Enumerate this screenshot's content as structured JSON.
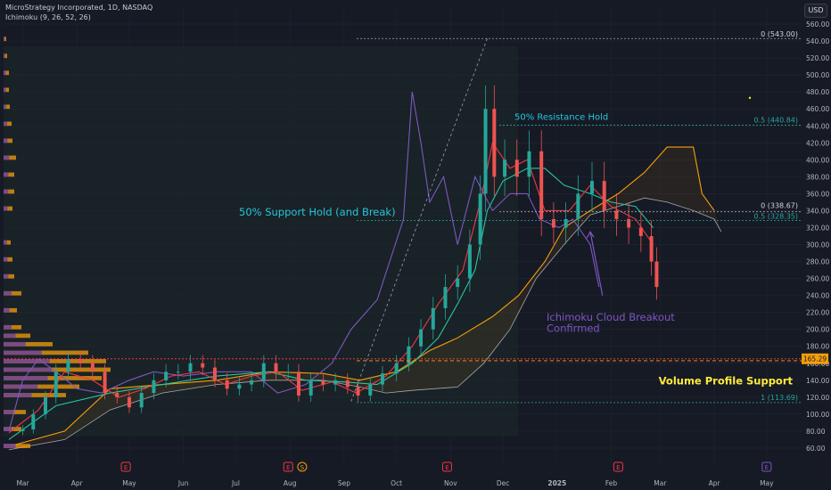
{
  "header": {
    "symbol_line": "MicroStrategy Incorporated, 1D, NASDAQ",
    "indicator_line": "Ichimoku (9, 26, 52, 26)",
    "currency": "USD"
  },
  "colors": {
    "background": "#161a25",
    "candle_up": "#26a69a",
    "candle_down": "#ef5350",
    "tenkan": "#f23645",
    "kijun": "#26c6a0",
    "lagging": "#7e57c2",
    "span_a": "#f59e0b",
    "span_b": "#c9c9cc",
    "volume_profile": "#f59e0b",
    "volume_profile_dim": "#6b3fa0",
    "fib_line": "#26a69a",
    "support_line": "#f59e0b",
    "support_line2": "#f23645",
    "annotation_teal": "#26c6da",
    "annotation_purple": "#7e57c2",
    "annotation_yellow": "#ffeb3b"
  },
  "chart_data": {
    "type": "candlestick",
    "title": "MicroStrategy Incorporated, 1D, NASDAQ",
    "ylim": [
      40,
      580
    ],
    "y_ticks": [
      60,
      80,
      100,
      120,
      140,
      160,
      180,
      200,
      220,
      240,
      260,
      280,
      300,
      320,
      340,
      360,
      380,
      400,
      420,
      440,
      460,
      480,
      500,
      520,
      540,
      560
    ],
    "x_labels": [
      {
        "label": "Mar",
        "date": "2024-03-01"
      },
      {
        "label": "Apr",
        "date": "2024-04-01"
      },
      {
        "label": "May",
        "date": "2024-05-01"
      },
      {
        "label": "Jun",
        "date": "2024-06-01"
      },
      {
        "label": "Jul",
        "date": "2024-07-01"
      },
      {
        "label": "Aug",
        "date": "2024-08-01"
      },
      {
        "label": "Sep",
        "date": "2024-09-01"
      },
      {
        "label": "Oct",
        "date": "2024-10-01"
      },
      {
        "label": "Nov",
        "date": "2024-11-01"
      },
      {
        "label": "Dec",
        "date": "2024-12-01"
      },
      {
        "label": "2025",
        "date": "2025-01-01"
      },
      {
        "label": "Feb",
        "date": "2025-02-01"
      },
      {
        "label": "Mar",
        "date": "2025-03-01"
      },
      {
        "label": "Apr",
        "date": "2025-04-01"
      },
      {
        "label": "May",
        "date": "2025-05-01"
      }
    ],
    "x_range": [
      "2024-02-19",
      "2025-05-21"
    ],
    "close_series": [
      [
        "2024-02-22",
        80
      ],
      [
        "2024-03-01",
        82
      ],
      [
        "2024-03-07",
        100
      ],
      [
        "2024-03-14",
        120
      ],
      [
        "2024-03-20",
        150
      ],
      [
        "2024-03-27",
        165
      ],
      [
        "2024-04-03",
        160
      ],
      [
        "2024-04-10",
        150
      ],
      [
        "2024-04-17",
        125
      ],
      [
        "2024-04-24",
        120
      ],
      [
        "2024-05-01",
        108
      ],
      [
        "2024-05-08",
        125
      ],
      [
        "2024-05-15",
        140
      ],
      [
        "2024-05-22",
        150
      ],
      [
        "2024-05-29",
        150
      ],
      [
        "2024-06-05",
        160
      ],
      [
        "2024-06-12",
        155
      ],
      [
        "2024-06-19",
        140
      ],
      [
        "2024-06-26",
        130
      ],
      [
        "2024-07-03",
        135
      ],
      [
        "2024-07-10",
        140
      ],
      [
        "2024-07-17",
        160
      ],
      [
        "2024-07-24",
        150
      ],
      [
        "2024-07-31",
        150
      ],
      [
        "2024-08-06",
        122
      ],
      [
        "2024-08-13",
        140
      ],
      [
        "2024-08-20",
        135
      ],
      [
        "2024-08-27",
        140
      ],
      [
        "2024-09-03",
        132
      ],
      [
        "2024-09-09",
        122
      ],
      [
        "2024-09-16",
        135
      ],
      [
        "2024-09-23",
        148
      ],
      [
        "2024-10-01",
        160
      ],
      [
        "2024-10-08",
        180
      ],
      [
        "2024-10-15",
        200
      ],
      [
        "2024-10-22",
        225
      ],
      [
        "2024-10-29",
        250
      ],
      [
        "2024-11-05",
        260
      ],
      [
        "2024-11-12",
        300
      ],
      [
        "2024-11-18",
        360
      ],
      [
        "2024-11-21",
        460
      ],
      [
        "2024-11-26",
        380
      ],
      [
        "2024-12-02",
        400
      ],
      [
        "2024-12-09",
        380
      ],
      [
        "2024-12-16",
        410
      ],
      [
        "2024-12-23",
        330
      ],
      [
        "2024-12-30",
        320
      ],
      [
        "2025-01-06",
        330
      ],
      [
        "2025-01-13",
        360
      ],
      [
        "2025-01-21",
        375
      ],
      [
        "2025-01-28",
        340
      ],
      [
        "2025-02-04",
        330
      ],
      [
        "2025-02-11",
        320
      ],
      [
        "2025-02-18",
        310
      ],
      [
        "2025-02-24",
        280
      ],
      [
        "2025-02-27",
        250
      ]
    ]
  },
  "annotations": {
    "fib_top": "0 (543.00)",
    "fib_mid": "0.5 (440.84)",
    "fib_lower_zero": "0 (338.67)",
    "fib_lower_half": "0.5 (328.35)",
    "fib_bottom": "1 (113.69)",
    "resistance": "50% Resistance Hold",
    "support_hold": "50% Support Hold (and Break)",
    "cloud_breakout_1": "Ichimoku Cloud Breakout",
    "cloud_breakout_2": "Confirmed",
    "volume_support": "Volume Profile Support",
    "price_tag": "165.29",
    "earnings_marker": "E",
    "dividend_marker": "S"
  }
}
